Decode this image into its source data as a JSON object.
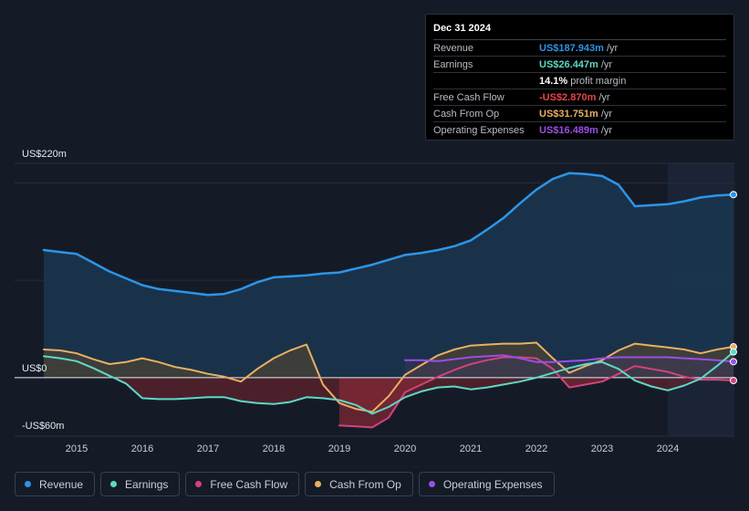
{
  "chart_data": {
    "type": "line",
    "ylim": [
      -60,
      220
    ],
    "xlim": [
      2014.5,
      2025.0
    ],
    "y_labels": [
      {
        "value": 220,
        "text": "US$220m"
      },
      {
        "value": 0,
        "text": "US$0"
      },
      {
        "value": -60,
        "text": "-US$60m"
      }
    ],
    "x_ticks": [
      {
        "value": 2015,
        "text": "2015"
      },
      {
        "value": 2016,
        "text": "2016"
      },
      {
        "value": 2017,
        "text": "2017"
      },
      {
        "value": 2018,
        "text": "2018"
      },
      {
        "value": 2019,
        "text": "2019"
      },
      {
        "value": 2020,
        "text": "2020"
      },
      {
        "value": 2021,
        "text": "2021"
      },
      {
        "value": 2022,
        "text": "2022"
      },
      {
        "value": 2023,
        "text": "2023"
      },
      {
        "value": 2024,
        "text": "2024"
      }
    ],
    "highlight_start": 2024.0,
    "series": [
      {
        "key": "revenue",
        "name": "Revenue",
        "color": "#2c95e8",
        "fill": "#1b3650",
        "points": [
          [
            2014.5,
            131
          ],
          [
            2014.75,
            129
          ],
          [
            2015.0,
            127
          ],
          [
            2015.25,
            118
          ],
          [
            2015.5,
            109
          ],
          [
            2015.75,
            102
          ],
          [
            2016.0,
            95
          ],
          [
            2016.25,
            91
          ],
          [
            2016.5,
            89
          ],
          [
            2016.75,
            87
          ],
          [
            2017.0,
            85
          ],
          [
            2017.25,
            86
          ],
          [
            2017.5,
            91
          ],
          [
            2017.75,
            98
          ],
          [
            2018.0,
            103
          ],
          [
            2018.25,
            104
          ],
          [
            2018.5,
            105
          ],
          [
            2018.75,
            107
          ],
          [
            2019.0,
            108
          ],
          [
            2019.25,
            112
          ],
          [
            2019.5,
            116
          ],
          [
            2019.75,
            121
          ],
          [
            2020.0,
            126
          ],
          [
            2020.25,
            128
          ],
          [
            2020.5,
            131
          ],
          [
            2020.75,
            135
          ],
          [
            2021.0,
            141
          ],
          [
            2021.25,
            152
          ],
          [
            2021.5,
            164
          ],
          [
            2021.75,
            179
          ],
          [
            2022.0,
            193
          ],
          [
            2022.25,
            204
          ],
          [
            2022.5,
            210
          ],
          [
            2022.75,
            209
          ],
          [
            2023.0,
            207
          ],
          [
            2023.25,
            198
          ],
          [
            2023.5,
            176
          ],
          [
            2023.75,
            177
          ],
          [
            2024.0,
            178
          ],
          [
            2024.25,
            181
          ],
          [
            2024.5,
            185
          ],
          [
            2024.75,
            187
          ],
          [
            2025.0,
            187.943
          ]
        ]
      },
      {
        "key": "earnings",
        "name": "Earnings",
        "color": "#5ed8c8",
        "fill": "#c0392b",
        "points": [
          [
            2014.5,
            22
          ],
          [
            2014.75,
            20
          ],
          [
            2015.0,
            17
          ],
          [
            2015.25,
            10
          ],
          [
            2015.5,
            2
          ],
          [
            2015.75,
            -6
          ],
          [
            2016.0,
            -21
          ],
          [
            2016.25,
            -22
          ],
          [
            2016.5,
            -22
          ],
          [
            2016.75,
            -21
          ],
          [
            2017.0,
            -20
          ],
          [
            2017.25,
            -20
          ],
          [
            2017.5,
            -24
          ],
          [
            2017.75,
            -26
          ],
          [
            2018.0,
            -27
          ],
          [
            2018.25,
            -25
          ],
          [
            2018.5,
            -20
          ],
          [
            2018.75,
            -21
          ],
          [
            2019.0,
            -23
          ],
          [
            2019.25,
            -28
          ],
          [
            2019.5,
            -37
          ],
          [
            2019.75,
            -30
          ],
          [
            2020.0,
            -20
          ],
          [
            2020.25,
            -14
          ],
          [
            2020.5,
            -10
          ],
          [
            2020.75,
            -9
          ],
          [
            2021.0,
            -12
          ],
          [
            2021.25,
            -10
          ],
          [
            2021.5,
            -7
          ],
          [
            2021.75,
            -4
          ],
          [
            2022.0,
            0
          ],
          [
            2022.25,
            5
          ],
          [
            2022.5,
            10
          ],
          [
            2022.75,
            14
          ],
          [
            2023.0,
            16
          ],
          [
            2023.25,
            9
          ],
          [
            2023.5,
            -3
          ],
          [
            2023.75,
            -9
          ],
          [
            2024.0,
            -13
          ],
          [
            2024.25,
            -8
          ],
          [
            2024.5,
            -1
          ],
          [
            2024.75,
            12
          ],
          [
            2025.0,
            26.447
          ]
        ]
      },
      {
        "key": "fcf",
        "name": "Free Cash Flow",
        "color": "#d4427e",
        "fill": "#c0392b",
        "points": [
          [
            2019.0,
            -49
          ],
          [
            2019.25,
            -50
          ],
          [
            2019.5,
            -51
          ],
          [
            2019.75,
            -41
          ],
          [
            2020.0,
            -15
          ],
          [
            2020.25,
            -7
          ],
          [
            2020.5,
            1
          ],
          [
            2020.75,
            8
          ],
          [
            2021.0,
            14
          ],
          [
            2021.25,
            18
          ],
          [
            2021.5,
            21
          ],
          [
            2021.75,
            21
          ],
          [
            2022.0,
            20
          ],
          [
            2022.25,
            9
          ],
          [
            2022.5,
            -10
          ],
          [
            2022.75,
            -7
          ],
          [
            2023.0,
            -4
          ],
          [
            2023.25,
            4
          ],
          [
            2023.5,
            12
          ],
          [
            2023.75,
            9
          ],
          [
            2024.0,
            6
          ],
          [
            2024.25,
            1
          ],
          [
            2024.5,
            -2
          ],
          [
            2024.75,
            -2
          ],
          [
            2025.0,
            -2.87
          ]
        ]
      },
      {
        "key": "cfo",
        "name": "Cash From Op",
        "color": "#e8b064",
        "fill": "#4a4334",
        "points": [
          [
            2014.5,
            29
          ],
          [
            2014.75,
            28
          ],
          [
            2015.0,
            25
          ],
          [
            2015.25,
            19
          ],
          [
            2015.5,
            14
          ],
          [
            2015.75,
            16
          ],
          [
            2016.0,
            20
          ],
          [
            2016.25,
            16
          ],
          [
            2016.5,
            11
          ],
          [
            2016.75,
            8
          ],
          [
            2017.0,
            4
          ],
          [
            2017.25,
            1
          ],
          [
            2017.5,
            -4
          ],
          [
            2017.75,
            9
          ],
          [
            2018.0,
            20
          ],
          [
            2018.25,
            28
          ],
          [
            2018.5,
            34
          ],
          [
            2018.75,
            -7
          ],
          [
            2019.0,
            -26
          ],
          [
            2019.25,
            -32
          ],
          [
            2019.5,
            -35
          ],
          [
            2019.75,
            -19
          ],
          [
            2020.0,
            3
          ],
          [
            2020.25,
            13
          ],
          [
            2020.5,
            23
          ],
          [
            2020.75,
            29
          ],
          [
            2021.0,
            33
          ],
          [
            2021.25,
            34
          ],
          [
            2021.5,
            35
          ],
          [
            2021.75,
            35
          ],
          [
            2022.0,
            36
          ],
          [
            2022.25,
            20
          ],
          [
            2022.5,
            5
          ],
          [
            2022.75,
            12
          ],
          [
            2023.0,
            18
          ],
          [
            2023.25,
            28
          ],
          [
            2023.5,
            35
          ],
          [
            2023.75,
            33
          ],
          [
            2024.0,
            31
          ],
          [
            2024.25,
            29
          ],
          [
            2024.5,
            25
          ],
          [
            2024.75,
            29
          ],
          [
            2025.0,
            31.751
          ]
        ]
      },
      {
        "key": "opex",
        "name": "Operating Expenses",
        "color": "#9c4ee8",
        "fill": "#3c3660",
        "points": [
          [
            2020.0,
            18
          ],
          [
            2020.25,
            18
          ],
          [
            2020.5,
            17
          ],
          [
            2020.75,
            19
          ],
          [
            2021.0,
            21
          ],
          [
            2021.25,
            22
          ],
          [
            2021.5,
            23
          ],
          [
            2021.75,
            20
          ],
          [
            2022.0,
            16
          ],
          [
            2022.25,
            16
          ],
          [
            2022.5,
            17
          ],
          [
            2022.75,
            18
          ],
          [
            2023.0,
            20
          ],
          [
            2023.25,
            21
          ],
          [
            2023.5,
            21
          ],
          [
            2023.75,
            21
          ],
          [
            2024.0,
            21
          ],
          [
            2024.25,
            20
          ],
          [
            2024.5,
            19
          ],
          [
            2024.75,
            18
          ],
          [
            2025.0,
            16.489
          ]
        ]
      }
    ]
  },
  "tooltip": {
    "date": "Dec 31 2024",
    "rows": [
      {
        "label": "Revenue",
        "value": "US$187.943m",
        "unit": "/yr",
        "color": "#2c95e8"
      },
      {
        "label": "Earnings",
        "value": "US$26.447m",
        "unit": "/yr",
        "color": "#5ed8c8"
      },
      {
        "label": "",
        "value": "14.1%",
        "unit": "profit margin",
        "color": "#ffffff"
      },
      {
        "label": "Free Cash Flow",
        "value": "-US$2.870m",
        "unit": "/yr",
        "color": "#e8434a"
      },
      {
        "label": "Cash From Op",
        "value": "US$31.751m",
        "unit": "/yr",
        "color": "#e8b064"
      },
      {
        "label": "Operating Expenses",
        "value": "US$16.489m",
        "unit": "/yr",
        "color": "#9c4ee8"
      }
    ]
  },
  "legend": [
    {
      "label": "Revenue",
      "color": "#2c95e8"
    },
    {
      "label": "Earnings",
      "color": "#5ed8c8"
    },
    {
      "label": "Free Cash Flow",
      "color": "#d4427e"
    },
    {
      "label": "Cash From Op",
      "color": "#e8b064"
    },
    {
      "label": "Operating Expenses",
      "color": "#9c4ee8"
    }
  ]
}
